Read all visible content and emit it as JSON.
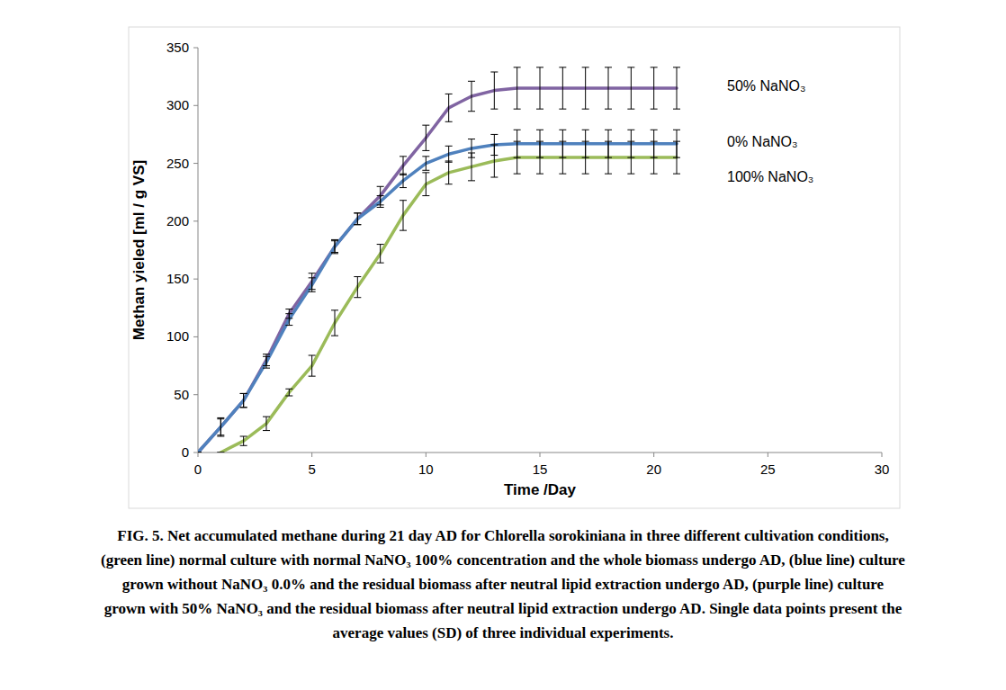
{
  "chart_data": {
    "type": "line",
    "x_label": "Time /Day",
    "y_label": "Methan yieled [ml / g VS]",
    "caption": [
      "FIG. 5. Net accumulated methane during 21 day AD for Chlorella sorokiniana in three different cultivation conditions,",
      "(green line) normal culture with normal NaNO₃ 100% concentration and the whole biomass undergo AD, (blue line) culture",
      "grown without NaNO₃ 0.0% and the residual biomass after neutral lipid extraction undergo AD, (purple line) culture",
      "grown with 50% NaNO₃ and the residual biomass after neutral lipid extraction undergo AD. Single data points present the",
      "average values (SD) of three individual experiments."
    ],
    "x": [
      0,
      1,
      2,
      3,
      4,
      5,
      6,
      7,
      8,
      9,
      10,
      11,
      12,
      13,
      14,
      15,
      16,
      17,
      18,
      19,
      20,
      21
    ],
    "xlim": [
      0,
      30
    ],
    "xticks": [
      0,
      5,
      10,
      15,
      20,
      25,
      30
    ],
    "ylim": [
      0,
      350
    ],
    "yticks": [
      0,
      50,
      100,
      150,
      200,
      250,
      300,
      350
    ],
    "grid": false,
    "series": [
      {
        "name": "50% NaNO₃",
        "color": "#8064a2",
        "values": [
          0,
          22,
          45,
          80,
          120,
          148,
          178,
          202,
          222,
          248,
          272,
          298,
          308,
          313,
          315,
          315,
          315,
          315,
          315,
          315,
          315,
          315
        ],
        "errors": [
          0,
          8,
          6,
          5,
          4,
          7,
          6,
          5,
          8,
          8,
          11,
          12,
          13,
          16,
          18,
          18,
          18,
          18,
          18,
          18,
          18,
          18
        ]
      },
      {
        "name": "0% NaNO₃",
        "color": "#4f81bd",
        "values": [
          0,
          22,
          45,
          78,
          115,
          145,
          178,
          202,
          217,
          235,
          250,
          258,
          263,
          266,
          267,
          267,
          267,
          267,
          267,
          267,
          267,
          267
        ],
        "errors": [
          0,
          7,
          6,
          5,
          5,
          6,
          5,
          5,
          5,
          6,
          6,
          7,
          8,
          9,
          12,
          12,
          12,
          12,
          12,
          12,
          12,
          12
        ]
      },
      {
        "name": "100% NaNO₃",
        "color": "#9bbb59",
        "values": [
          null,
          0,
          10,
          25,
          52,
          75,
          112,
          143,
          172,
          205,
          232,
          242,
          247,
          252,
          255,
          255,
          255,
          255,
          255,
          255,
          255,
          255
        ],
        "errors": [
          null,
          0,
          4,
          6,
          3,
          9,
          11,
          9,
          8,
          13,
          10,
          10,
          12,
          14,
          14,
          14,
          14,
          14,
          14,
          14,
          14,
          14
        ]
      }
    ]
  }
}
